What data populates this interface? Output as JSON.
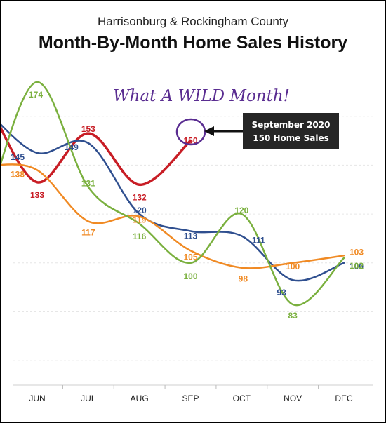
{
  "title": "Month-By-Month Home Sales History",
  "subtitle": "Harrisonburg & Rockingham County",
  "annotation": {
    "handwritten": "What A WILD Month!",
    "callout_line1": "September 2020",
    "callout_line2": "150 Home Sales",
    "circled_value": "150"
  },
  "colors": {
    "red": "#c81d25",
    "blue": "#2f4f8f",
    "orange": "#f08a24",
    "green": "#7ab03e",
    "handwriting": "#5a2d91"
  },
  "chart_data": {
    "type": "line",
    "categories": [
      "JUN",
      "JUL",
      "AUG",
      "SEP",
      "OCT",
      "NOV",
      "DEC"
    ],
    "ylim": [
      50,
      180
    ],
    "grid": true,
    "series": [
      {
        "color": "#c81d25",
        "values": [
          133,
          153,
          132,
          150,
          null,
          null,
          null
        ],
        "labels": [
          "133",
          "153",
          "132",
          "150",
          "",
          "",
          ""
        ]
      },
      {
        "color": "#2f4f8f",
        "values": [
          145,
          149,
          120,
          113,
          111,
          93,
          100
        ],
        "labels": [
          "145",
          "149",
          "120",
          "113",
          "111",
          "93",
          "100"
        ]
      },
      {
        "color": "#f08a24",
        "values": [
          138,
          117,
          119,
          105,
          98,
          100,
          103
        ],
        "labels": [
          "138",
          "117",
          "119",
          "105",
          "98",
          "100",
          "103"
        ]
      },
      {
        "color": "#7ab03e",
        "values": [
          174,
          131,
          116,
          100,
          120,
          83,
          102
        ],
        "labels": [
          "174",
          "131",
          "116",
          "100",
          "120",
          "83",
          "102"
        ]
      }
    ]
  }
}
